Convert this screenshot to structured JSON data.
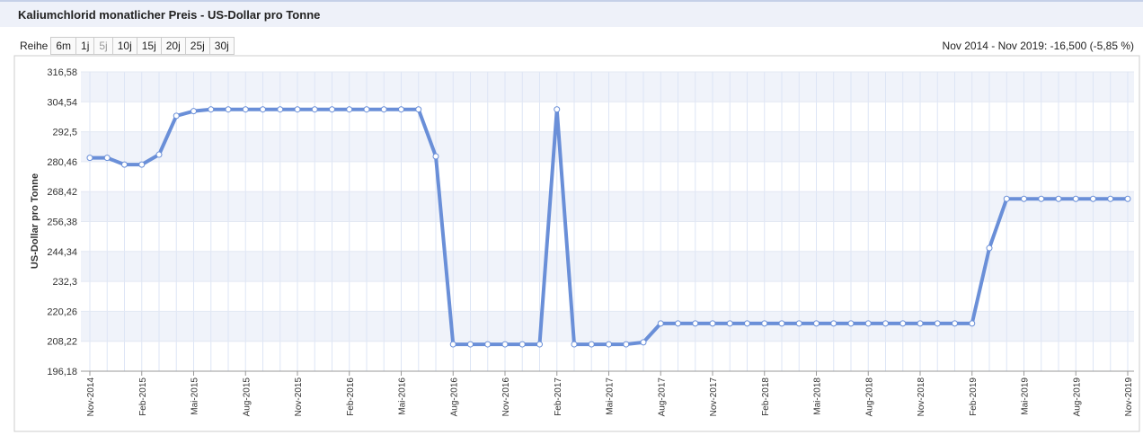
{
  "toolbar": {
    "label": "Reihe",
    "buttons": [
      "6m",
      "1j",
      "5j",
      "10j",
      "15j",
      "20j",
      "25j",
      "30j"
    ],
    "summary": "Nov 2014 - Nov 2019: -16,500 (-5,85 %)"
  },
  "chart_data": {
    "type": "line",
    "title": "Kaliumchlorid monatlicher Preis - US-Dollar pro Tonne",
    "y_label": "US-Dollar pro Tonne",
    "categories": [
      "Nov-2014",
      null,
      null,
      "Feb-2015",
      null,
      null,
      "Mai-2015",
      null,
      null,
      "Aug-2015",
      null,
      null,
      "Nov-2015",
      null,
      null,
      "Feb-2016",
      null,
      null,
      "Mai-2016",
      null,
      null,
      "Aug-2016",
      null,
      null,
      "Nov-2016",
      null,
      null,
      "Feb-2017",
      null,
      null,
      "Mai-2017",
      null,
      null,
      "Aug-2017",
      null,
      null,
      "Nov-2017",
      null,
      null,
      "Feb-2018",
      null,
      null,
      "Mai-2018",
      null,
      null,
      "Aug-2018",
      null,
      null,
      "Nov-2018",
      null,
      null,
      "Feb-2019",
      null,
      null,
      "Mai-2019",
      null,
      null,
      "Aug-2019",
      null,
      null,
      "Nov-2019"
    ],
    "series": [
      {
        "name": "Kaliumchlorid",
        "color": "#6a8fd8",
        "values": [
          282,
          282,
          279.3,
          279.3,
          283.3,
          298.9,
          300.8,
          301.5,
          301.5,
          301.5,
          301.5,
          301.5,
          301.5,
          301.5,
          301.5,
          301.5,
          301.5,
          301.5,
          301.5,
          301.5,
          282.6,
          207,
          207,
          207,
          207,
          207,
          207,
          301.5,
          207,
          207,
          207,
          207,
          207.8,
          215.4,
          215.4,
          215.4,
          215.4,
          215.4,
          215.4,
          215.4,
          215.4,
          215.4,
          215.4,
          215.4,
          215.4,
          215.4,
          215.4,
          215.4,
          215.4,
          215.4,
          215.4,
          215.4,
          245.7,
          265.5,
          265.5,
          265.5,
          265.5,
          265.5,
          265.5,
          265.5,
          265.5
        ]
      }
    ],
    "ylim": [
      196.18,
      316.58
    ],
    "yticks": [
      {
        "value": 196.18,
        "label": "196,18"
      },
      {
        "value": 208.22,
        "label": "208,22"
      },
      {
        "value": 220.26,
        "label": "220,26"
      },
      {
        "value": 232.3,
        "label": "232,3"
      },
      {
        "value": 244.34,
        "label": "244,34"
      },
      {
        "value": 256.38,
        "label": "256,38"
      },
      {
        "value": 268.42,
        "label": "268,42"
      },
      {
        "value": 280.46,
        "label": "280,46"
      },
      {
        "value": 292.5,
        "label": "292,5"
      },
      {
        "value": 304.54,
        "label": "304,54"
      },
      {
        "value": 316.58,
        "label": "316,58"
      }
    ],
    "grid": true
  }
}
